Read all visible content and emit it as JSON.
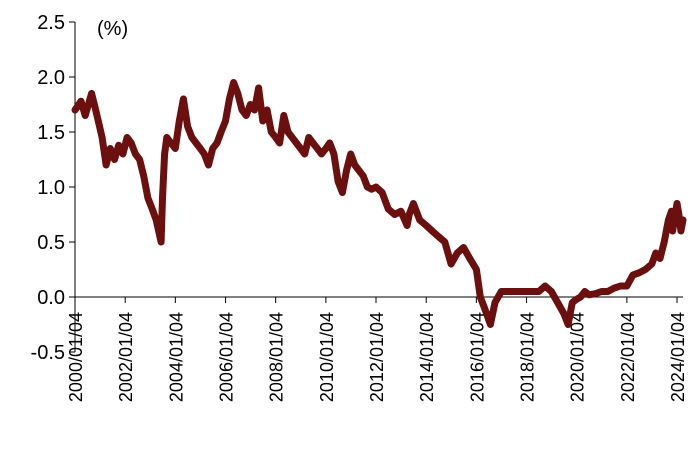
{
  "chart_data": {
    "type": "line",
    "unit_label": "(%)",
    "title": "",
    "xlabel": "",
    "ylabel": "",
    "ylim": [
      -0.5,
      2.5
    ],
    "yticks": [
      "2.5",
      "2.0",
      "1.5",
      "1.0",
      "0.5",
      "0.0",
      "-0.5"
    ],
    "xlim": [
      "2000/01/04",
      "2024/03/31"
    ],
    "xticks": [
      "2000/01/04",
      "2002/01/04",
      "2004/01/04",
      "2006/01/04",
      "2008/01/04",
      "2010/01/04",
      "2012/01/04",
      "2014/01/04",
      "2016/01/04",
      "2018/01/04",
      "2020/01/04",
      "2022/01/04",
      "2024/01/04"
    ],
    "grid": false,
    "legend": "none",
    "series": [
      {
        "color": "#6b0f0f",
        "x": [
          "2000/01/04",
          "2000/04/01",
          "2000/06/01",
          "2000/09/01",
          "2000/11/01",
          "2001/02/01",
          "2001/04/01",
          "2001/06/01",
          "2001/08/01",
          "2001/10/01",
          "2001/12/01",
          "2002/02/01",
          "2002/04/01",
          "2002/06/01",
          "2002/08/01",
          "2002/10/01",
          "2002/12/01",
          "2003/02/01",
          "2003/04/01",
          "2003/06/11",
          "2003/07/01",
          "2003/08/01",
          "2003/09/01",
          "2003/11/01",
          "2004/01/04",
          "2004/03/01",
          "2004/05/01",
          "2004/07/01",
          "2004/09/01",
          "2004/11/01",
          "2005/01/01",
          "2005/03/01",
          "2005/05/01",
          "2005/07/01",
          "2005/09/01",
          "2005/11/01",
          "2006/01/04",
          "2006/03/01",
          "2006/05/01",
          "2006/07/01",
          "2006/09/01",
          "2006/11/01",
          "2007/01/01",
          "2007/03/01",
          "2007/05/01",
          "2007/07/01",
          "2007/09/01",
          "2007/11/01",
          "2008/01/04",
          "2008/03/01",
          "2008/05/01",
          "2008/07/01",
          "2008/09/01",
          "2008/11/01",
          "2009/01/01",
          "2009/03/01",
          "2009/05/01",
          "2009/07/01",
          "2009/09/01",
          "2009/11/01",
          "2010/01/04",
          "2010/03/01",
          "2010/05/01",
          "2010/07/01",
          "2010/09/01",
          "2010/11/01",
          "2011/01/01",
          "2011/03/01",
          "2011/05/01",
          "2011/07/01",
          "2011/09/01",
          "2011/11/01",
          "2012/01/04",
          "2012/04/01",
          "2012/07/01",
          "2012/10/01",
          "2013/01/01",
          "2013/04/01",
          "2013/05/01",
          "2013/07/01",
          "2013/10/01",
          "2014/01/04",
          "2014/04/01",
          "2014/07/01",
          "2014/10/01",
          "2015/01/01",
          "2015/04/01",
          "2015/07/01",
          "2015/10/01",
          "2016/01/04",
          "2016/03/01",
          "2016/05/01",
          "2016/07/27",
          "2016/10/01",
          "2017/01/01",
          "2017/04/01",
          "2017/07/01",
          "2017/10/01",
          "2018/01/04",
          "2018/04/01",
          "2018/07/01",
          "2018/10/01",
          "2019/01/01",
          "2019/04/01",
          "2019/07/01",
          "2019/09/01",
          "2019/11/01",
          "2020/01/04",
          "2020/03/01",
          "2020/05/01",
          "2020/07/01",
          "2020/10/01",
          "2021/01/01",
          "2021/04/01",
          "2021/07/01",
          "2021/10/01",
          "2022/01/04",
          "2022/04/01",
          "2022/07/01",
          "2022/10/01",
          "2023/01/01",
          "2023/03/01",
          "2023/05/01",
          "2023/07/01",
          "2023/09/01",
          "2023/10/15",
          "2023/11/01",
          "2024/01/04",
          "2024/02/01",
          "2024/03/01",
          "2024/03/31"
        ],
        "values": [
          1.7,
          1.78,
          1.65,
          1.85,
          1.7,
          1.45,
          1.2,
          1.35,
          1.25,
          1.38,
          1.3,
          1.45,
          1.4,
          1.3,
          1.25,
          1.1,
          0.9,
          0.8,
          0.7,
          0.5,
          0.9,
          1.3,
          1.45,
          1.4,
          1.35,
          1.6,
          1.8,
          1.55,
          1.45,
          1.4,
          1.35,
          1.3,
          1.2,
          1.35,
          1.4,
          1.5,
          1.6,
          1.8,
          1.95,
          1.85,
          1.7,
          1.65,
          1.75,
          1.7,
          1.9,
          1.6,
          1.7,
          1.5,
          1.45,
          1.4,
          1.65,
          1.5,
          1.45,
          1.4,
          1.35,
          1.3,
          1.45,
          1.4,
          1.35,
          1.3,
          1.35,
          1.4,
          1.3,
          1.05,
          0.95,
          1.15,
          1.3,
          1.2,
          1.15,
          1.1,
          1.0,
          0.98,
          1.0,
          0.95,
          0.8,
          0.75,
          0.78,
          0.65,
          0.75,
          0.85,
          0.7,
          0.65,
          0.6,
          0.55,
          0.5,
          0.3,
          0.4,
          0.45,
          0.35,
          0.25,
          0.0,
          -0.1,
          -0.25,
          -0.05,
          0.05,
          0.05,
          0.05,
          0.05,
          0.05,
          0.05,
          0.05,
          0.1,
          0.05,
          -0.05,
          -0.15,
          -0.25,
          -0.05,
          -0.02,
          0.0,
          0.05,
          0.02,
          0.03,
          0.05,
          0.05,
          0.08,
          0.1,
          0.1,
          0.2,
          0.22,
          0.25,
          0.3,
          0.4,
          0.35,
          0.5,
          0.7,
          0.78,
          0.6,
          0.85,
          0.75,
          0.6,
          0.7
        ]
      }
    ]
  }
}
